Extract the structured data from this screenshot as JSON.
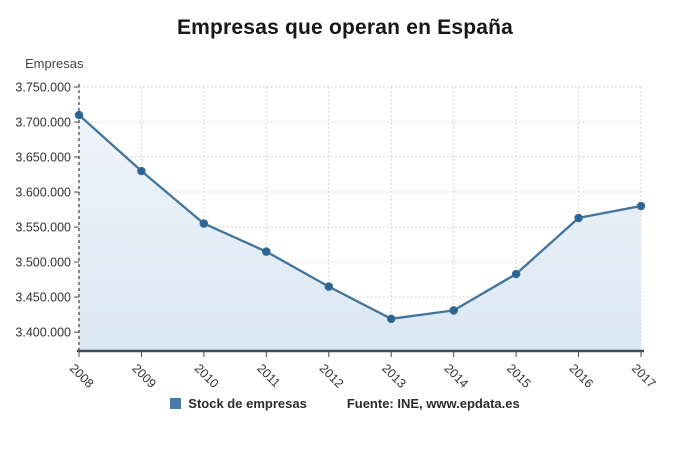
{
  "chart_data": {
    "type": "area",
    "title": "Empresas que operan en España",
    "y_axis_title": "Empresas",
    "categories": [
      "2008",
      "2009",
      "2010",
      "2011",
      "2012",
      "2013",
      "2014",
      "2015",
      "2016",
      "2017"
    ],
    "series": [
      {
        "name": "Stock de empresas",
        "values": [
          3710000,
          3630000,
          3555000,
          3515000,
          3465000,
          3419000,
          3431000,
          3483000,
          3563000,
          3580000
        ]
      }
    ],
    "y_ticks": [
      3400000,
      3450000,
      3500000,
      3550000,
      3600000,
      3650000,
      3700000,
      3750000
    ],
    "ylim": [
      3373000,
      3750000
    ],
    "number_format": "dot-thousands",
    "grid": true,
    "legend_position": "bottom",
    "source": "Fuente: INE, www.epdata.es",
    "colors": {
      "line": "#42749c",
      "marker": "#2c6390",
      "area_top": "#eef4fa",
      "area_bottom": "#dbe7f2",
      "grid": "#c9c9c9",
      "axis": "#3e4c59",
      "tick_label": "#333333",
      "legend_swatch": "#4879a7"
    }
  }
}
